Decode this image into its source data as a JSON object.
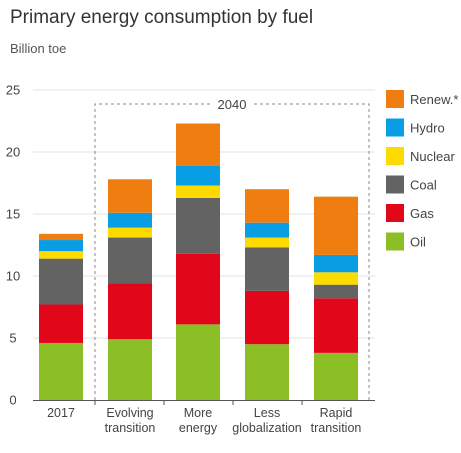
{
  "chart_data": {
    "type": "bar",
    "stacked": true,
    "title": "Primary energy consumption by fuel",
    "subtitle": "Billion toe",
    "ylim": [
      0,
      25
    ],
    "yticks": [
      0,
      5,
      10,
      15,
      20,
      25
    ],
    "grid": true,
    "legend_position": "right",
    "group_label": "2040",
    "categories": [
      [
        "2017"
      ],
      [
        "Evolving",
        "transition"
      ],
      [
        "More",
        "energy"
      ],
      [
        "Less",
        "globalization"
      ],
      [
        "Rapid",
        "transition"
      ]
    ],
    "series": [
      {
        "name": "Oil",
        "color": "#8cbf26",
        "values": [
          4.6,
          4.9,
          6.1,
          4.5,
          3.8
        ]
      },
      {
        "name": "Gas",
        "color": "#e2061b",
        "values": [
          3.1,
          4.5,
          5.7,
          4.3,
          4.4
        ]
      },
      {
        "name": "Coal",
        "color": "#636363",
        "values": [
          3.7,
          3.7,
          4.5,
          3.5,
          1.1
        ]
      },
      {
        "name": "Nuclear",
        "color": "#fedb00",
        "values": [
          0.6,
          0.8,
          1.0,
          0.8,
          1.0
        ]
      },
      {
        "name": "Hydro",
        "color": "#099ee3",
        "values": [
          0.9,
          1.2,
          1.6,
          1.2,
          1.4
        ]
      },
      {
        "name": "Renew.*",
        "color": "#f07d0f",
        "values": [
          0.5,
          2.7,
          3.4,
          2.7,
          4.7
        ]
      }
    ]
  }
}
